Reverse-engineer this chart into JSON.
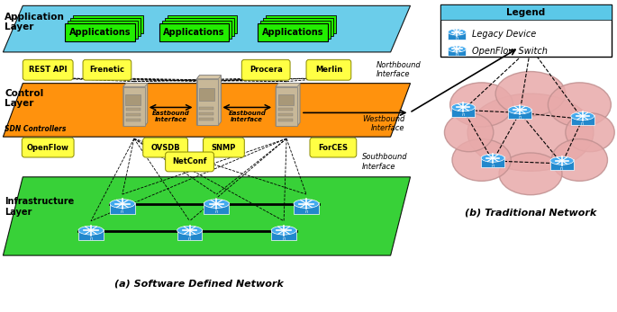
{
  "title_a": "(a) Software Defined Network",
  "title_b": "(b) Traditional Network",
  "app_layer_label": "Application\nLayer",
  "control_layer_label": "Control\nLayer",
  "infra_layer_label": "Infrastructure\nLayer",
  "northbound_label": "Northbound\nInterface",
  "southbound_label": "Southbound\nInterface",
  "westbound_label": "Westbound\nInterface",
  "eastbound1_label": "Eastbound\nInterface",
  "eastbound2_label": "Eastbound\nInterface",
  "sdn_controllers_label": "SDN Controllers",
  "app_layer_color": "#5BC8E8",
  "control_layer_color": "#FF8C00",
  "infra_layer_color": "#22CC22",
  "app_box_color": "#22EE00",
  "yellow_color": "#FFFF44",
  "legend_header_color": "#5BC8E8",
  "pink_cloud_color": "#E8AAAA",
  "server_color": "#C8B898",
  "router_color": "#2288CC",
  "northbound_items": [
    "REST API",
    "Frenetic",
    "Procera",
    "Merlin"
  ],
  "southbound_items": [
    "OpenFlow",
    "OVSDB",
    "SNMP",
    "NetConf",
    "ForCES"
  ],
  "legend_items": [
    "Legacy Device",
    "OpenFlow Switch"
  ],
  "fig_w": 6.85,
  "fig_h": 3.47,
  "dpi": 100
}
